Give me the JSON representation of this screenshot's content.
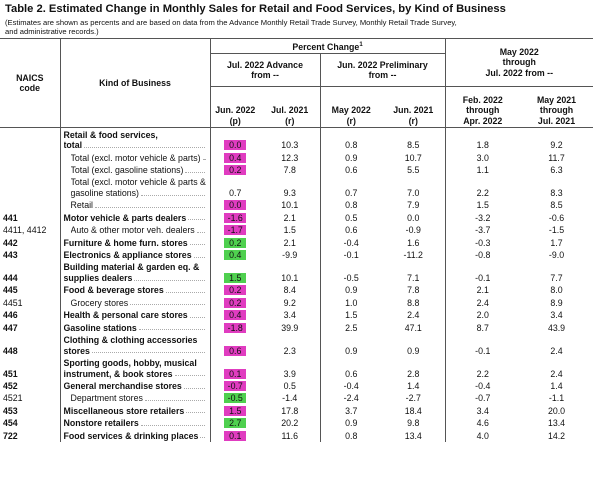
{
  "header": {
    "title": "Table 2.  Estimated Change in Monthly Sales for Retail and Food Services, by Kind of Business",
    "subtitle": [
      "(Estimates are shown as percents and are based on data from the Advance Monthly Retail Trade Survey,  Monthly Retail Trade Survey,",
      "and administrative records.)"
    ]
  },
  "table": {
    "code_header": [
      "NAICS",
      "code"
    ],
    "kind_header": "Kind of Business",
    "percent_change": "Percent Change",
    "footnote_mark": "1",
    "groups": [
      [
        "Jul. 2022 Advance",
        "from --"
      ],
      [
        "Jun. 2022 Preliminary",
        "from --"
      ],
      [
        "May 2022",
        "through",
        "Jul. 2022 from --"
      ]
    ],
    "columns": [
      [
        "Jun. 2022",
        "(p)"
      ],
      [
        "Jul. 2021",
        "(r)"
      ],
      [
        "May 2022",
        "(r)"
      ],
      [
        "Jun. 2021",
        "(r)"
      ],
      [
        "Feb. 2022",
        "through",
        "Apr. 2022"
      ],
      [
        "May 2021",
        "through",
        "Jul. 2021"
      ]
    ],
    "rows": [
      {
        "code": null,
        "label": [
          "Retail & food services,",
          "total"
        ],
        "bold": true,
        "highlight": "#e03cc0",
        "values": [
          "0.0",
          "10.3",
          "0.8",
          "8.5",
          "1.8",
          "9.2"
        ]
      },
      {
        "code": null,
        "label": [
          "Total (excl. motor vehicle & parts)"
        ],
        "bold": false,
        "highlight": "#e03cc0",
        "values": [
          "0.4",
          "12.3",
          "0.9",
          "10.7",
          "3.0",
          "11.7"
        ]
      },
      {
        "code": null,
        "label": [
          "Total (excl. gasoline stations)"
        ],
        "bold": false,
        "highlight": "#e03cc0",
        "values": [
          "0.2",
          "7.8",
          "0.6",
          "5.5",
          "1.1",
          "6.3"
        ]
      },
      {
        "code": null,
        "label": [
          "Total (excl. motor vehicle & parts &",
          "gasoline stations)"
        ],
        "bold": false,
        "highlight": null,
        "values": [
          "0.7",
          "9.3",
          "0.7",
          "7.0",
          "2.2",
          "8.3"
        ]
      },
      {
        "code": null,
        "label": [
          "Retail"
        ],
        "bold": false,
        "highlight": "#e03cc0",
        "values": [
          "0.0",
          "10.1",
          "0.8",
          "7.9",
          "1.5",
          "8.5"
        ]
      },
      {
        "code": "441",
        "label": [
          "Motor vehicle & parts dealers"
        ],
        "bold": true,
        "highlight": "#e03cc0",
        "values": [
          "-1.6",
          "2.1",
          "0.5",
          "0.0",
          "-3.2",
          "-0.6"
        ]
      },
      {
        "code": "4411, 4412",
        "label": [
          "Auto & other motor veh. dealers"
        ],
        "bold": false,
        "highlight": "#e03cc0",
        "values": [
          "-1.7",
          "1.5",
          "0.6",
          "-0.9",
          "-3.7",
          "-1.5"
        ]
      },
      {
        "code": "442",
        "label": [
          "Furniture & home furn. stores"
        ],
        "bold": true,
        "highlight": "#4fd04f",
        "values": [
          "0.2",
          "2.1",
          "-0.4",
          "1.6",
          "-0.3",
          "1.7"
        ]
      },
      {
        "code": "443",
        "label": [
          "Electronics & appliance stores"
        ],
        "bold": true,
        "highlight": "#4fd04f",
        "values": [
          "0.4",
          "-9.9",
          "-0.1",
          "-11.2",
          "-0.8",
          "-9.0"
        ]
      },
      {
        "code": "444",
        "label": [
          "Building material & garden eq. &",
          "supplies dealers"
        ],
        "bold": true,
        "highlight": "#4fd04f",
        "values": [
          "1.5",
          "10.1",
          "-0.5",
          "7.1",
          "-0.1",
          "7.7"
        ]
      },
      {
        "code": "445",
        "label": [
          "Food & beverage stores"
        ],
        "bold": true,
        "highlight": "#e03cc0",
        "values": [
          "0.2",
          "8.4",
          "0.9",
          "7.8",
          "2.1",
          "8.0"
        ]
      },
      {
        "code": "4451",
        "label": [
          "Grocery stores"
        ],
        "bold": false,
        "highlight": "#e03cc0",
        "values": [
          "0.2",
          "9.2",
          "1.0",
          "8.8",
          "2.4",
          "8.9"
        ]
      },
      {
        "code": "446",
        "label": [
          "Health & personal care stores"
        ],
        "bold": true,
        "highlight": "#e03cc0",
        "values": [
          "0.4",
          "3.4",
          "1.5",
          "2.4",
          "2.0",
          "3.4"
        ]
      },
      {
        "code": "447",
        "label": [
          "Gasoline stations"
        ],
        "bold": true,
        "highlight": "#e03cc0",
        "values": [
          "-1.8",
          "39.9",
          "2.5",
          "47.1",
          "8.7",
          "43.9"
        ]
      },
      {
        "code": "448",
        "label": [
          "Clothing & clothing accessories",
          "stores"
        ],
        "bold": true,
        "highlight": "#e03cc0",
        "values": [
          "0.6",
          "2.3",
          "0.9",
          "0.9",
          "-0.1",
          "2.4"
        ]
      },
      {
        "code": "451",
        "label": [
          "Sporting goods, hobby, musical",
          "instrument, & book stores"
        ],
        "bold": true,
        "highlight": "#e03cc0",
        "values": [
          "0.1",
          "3.9",
          "0.6",
          "2.8",
          "2.2",
          "2.4"
        ]
      },
      {
        "code": "452",
        "label": [
          "General merchandise stores"
        ],
        "bold": true,
        "highlight": "#e03cc0",
        "values": [
          "-0.7",
          "0.5",
          "-0.4",
          "1.4",
          "-0.4",
          "1.4"
        ]
      },
      {
        "code": "4521",
        "label": [
          "Department stores"
        ],
        "bold": false,
        "highlight": "#4fd04f",
        "values": [
          "-0.5",
          "-1.4",
          "-2.4",
          "-2.7",
          "-0.7",
          "-1.1"
        ]
      },
      {
        "code": "453",
        "label": [
          "Miscellaneous store retailers"
        ],
        "bold": true,
        "highlight": "#e03cc0",
        "values": [
          "1.5",
          "17.8",
          "3.7",
          "18.4",
          "3.4",
          "20.0"
        ]
      },
      {
        "code": "454",
        "label": [
          "Nonstore retailers"
        ],
        "bold": true,
        "highlight": "#4fd04f",
        "values": [
          "2.7",
          "20.2",
          "0.9",
          "9.8",
          "4.6",
          "13.4"
        ]
      },
      {
        "code": "722",
        "label": [
          "Food services & drinking places"
        ],
        "bold": true,
        "highlight": "#e03cc0",
        "values": [
          "0.1",
          "11.6",
          "0.8",
          "13.4",
          "4.0",
          "14.2"
        ]
      }
    ]
  }
}
